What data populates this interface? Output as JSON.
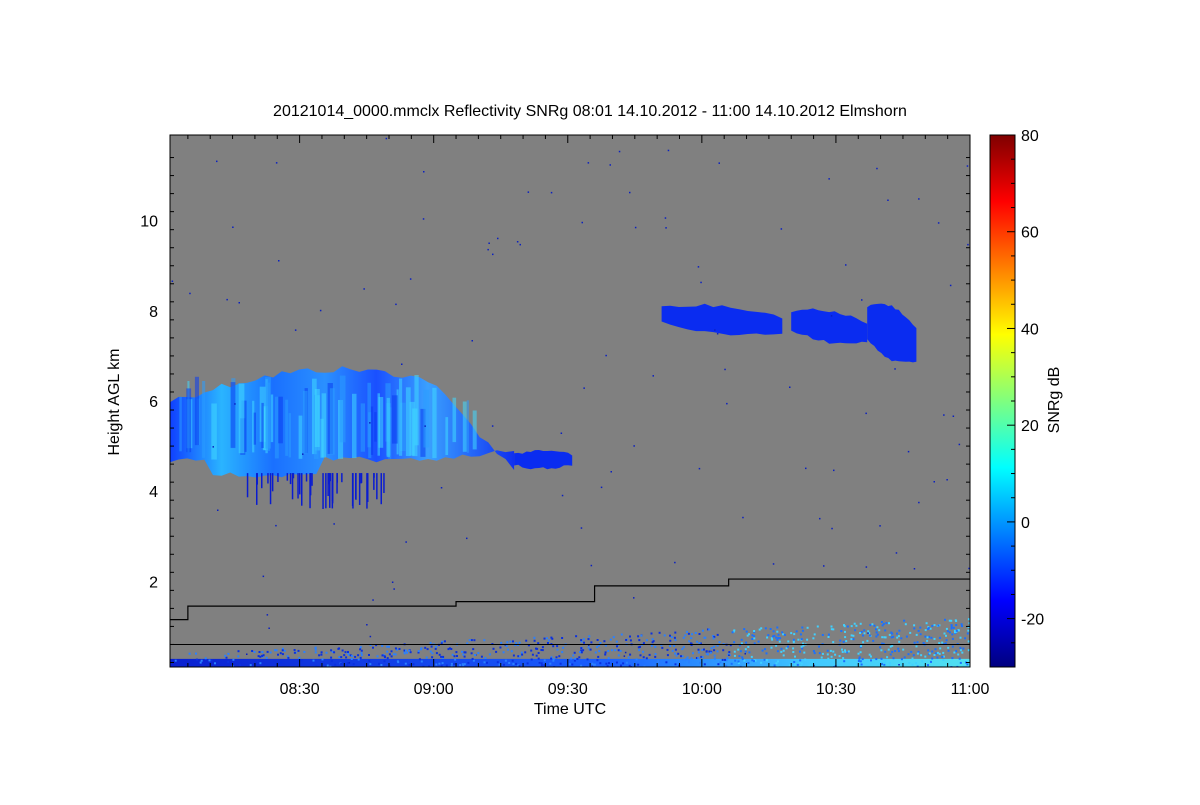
{
  "chart_data": {
    "type": "heatmap",
    "title": "20121014_0000.mmclx Reflectivity SNRg   08:01 14.10.2012 - 11:00 14.10.2012 Elmshorn",
    "xlabel": "Time UTC",
    "ylabel": "Height AGL km",
    "colorbar_label": "SNRg dB",
    "x_ticks": [
      "08:30",
      "09:00",
      "09:30",
      "10:00",
      "10:30",
      "11:00"
    ],
    "x_range": [
      "08:01",
      "11:00"
    ],
    "y_ticks": [
      "2",
      "4",
      "6",
      "8",
      "10"
    ],
    "y_range_km": [
      0.1,
      11.9
    ],
    "colorbar_ticks": [
      "-20",
      "0",
      "20",
      "40",
      "60",
      "80"
    ],
    "colorbar_range_db": [
      -30,
      80
    ],
    "colormap": [
      "#00007f",
      "#0000ff",
      "#007fff",
      "#00ffff",
      "#7fff7f",
      "#ffff00",
      "#ff7f00",
      "#ff0000",
      "#7f0000"
    ],
    "background_color": "#808080",
    "grid": false,
    "cloud_layers": [
      {
        "time_start": "08:01",
        "time_end": "09:18",
        "height_base_km": 3.7,
        "height_top_km": 6.8,
        "snr_db_range": [
          -25,
          8
        ]
      },
      {
        "time_start": "09:18",
        "time_end": "09:31",
        "height_base_km": 4.5,
        "height_top_km": 4.9,
        "snr_db_range": [
          -25,
          -15
        ]
      },
      {
        "time_start": "09:51",
        "time_end": "10:18",
        "height_base_km": 7.5,
        "height_top_km": 8.1,
        "snr_db_range": [
          -25,
          -15
        ]
      },
      {
        "time_start": "10:20",
        "time_end": "10:37",
        "height_base_km": 7.3,
        "height_top_km": 8.0,
        "snr_db_range": [
          -25,
          -15
        ]
      },
      {
        "time_start": "10:37",
        "time_end": "10:48",
        "height_base_km": 6.9,
        "height_top_km": 8.1,
        "snr_db_range": [
          -25,
          -15
        ]
      }
    ],
    "boundary_layer_line": {
      "time": [
        "08:01",
        "08:05",
        "09:05",
        "09:36",
        "10:06",
        "11:00"
      ],
      "height_km": [
        1.15,
        1.45,
        1.55,
        1.9,
        2.05,
        2.05
      ]
    },
    "near_surface_line_km": 0.6
  }
}
